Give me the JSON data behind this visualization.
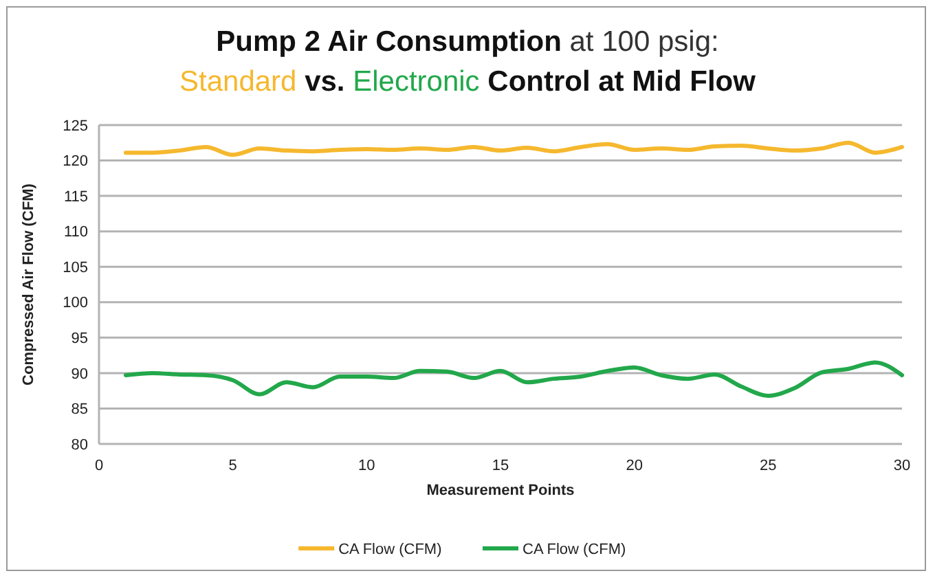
{
  "chart_data": {
    "type": "line",
    "title": "Pump 2 Air Consumption at 100 psig:",
    "subtitle": "Standard vs. Electronic Control at Mid Flow",
    "xlabel": "Measurement Points",
    "ylabel": "Compressed Air Flow (CFM)",
    "x": [
      1,
      2,
      3,
      4,
      5,
      6,
      7,
      8,
      9,
      10,
      11,
      12,
      13,
      14,
      15,
      16,
      17,
      18,
      19,
      20,
      21,
      22,
      23,
      24,
      25,
      26,
      27,
      28,
      29,
      30
    ],
    "series": [
      {
        "name": "CA Flow (CFM)",
        "color": "#f5b82e",
        "values": [
          121.1,
          121.1,
          121.4,
          121.9,
          120.8,
          121.7,
          121.4,
          121.3,
          121.5,
          121.6,
          121.5,
          121.7,
          121.5,
          121.9,
          121.4,
          121.8,
          121.3,
          121.9,
          122.3,
          121.5,
          121.7,
          121.5,
          122.0,
          122.1,
          121.7,
          121.4,
          121.7,
          122.5,
          121.1,
          121.9
        ]
      },
      {
        "name": "CA Flow (CFM)",
        "color": "#22a84b",
        "values": [
          89.7,
          90.0,
          89.8,
          89.7,
          89.0,
          87.0,
          88.7,
          88.0,
          89.5,
          89.5,
          89.3,
          90.3,
          90.2,
          89.3,
          90.3,
          88.7,
          89.2,
          89.5,
          90.3,
          90.8,
          89.7,
          89.2,
          89.8,
          88.1,
          86.8,
          87.9,
          90.1,
          90.6,
          91.5,
          89.7
        ]
      }
    ],
    "xlim": [
      0,
      30
    ],
    "xticks": [
      0,
      5,
      10,
      15,
      20,
      25,
      30
    ],
    "ylim": [
      80,
      125
    ],
    "yticks": [
      80,
      85,
      90,
      95,
      100,
      105,
      110,
      115,
      120,
      125
    ],
    "grid": "y",
    "legend": "bottom",
    "marker": "none",
    "line_style": "solid"
  }
}
